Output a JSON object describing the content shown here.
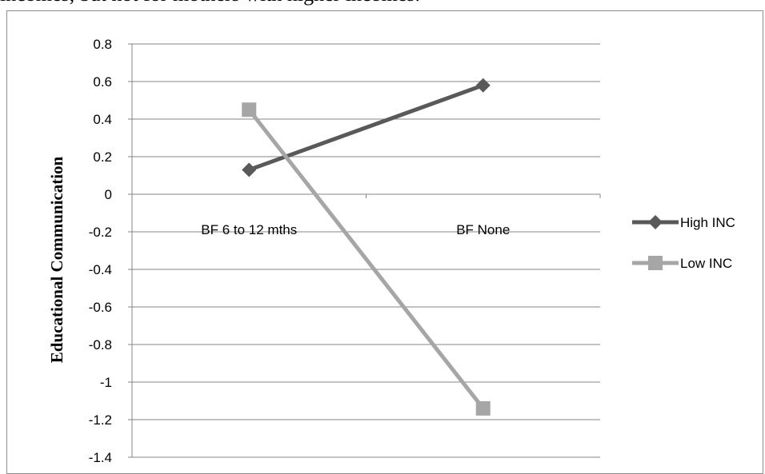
{
  "header_text": "incomes, but not for mothers with higher incomes.",
  "chart_data": {
    "type": "line",
    "categories": [
      "BF 6 to 12 mths",
      "BF None"
    ],
    "ylabel": "Educational Communication",
    "xlabel": "",
    "ylim": [
      -1.4,
      0.8
    ],
    "yticks": [
      0.8,
      0.6,
      0.4,
      0.2,
      0,
      -0.2,
      -0.4,
      -0.6,
      -0.8,
      -1,
      -1.2,
      -1.4
    ],
    "grid": true,
    "legend": "right",
    "series": [
      {
        "name": "High INC",
        "values": [
          0.13,
          0.58
        ],
        "color": "#595959",
        "marker": "diamond"
      },
      {
        "name": "Low INC",
        "values": [
          0.45,
          -1.14
        ],
        "color": "#a6a6a6",
        "marker": "square"
      }
    ]
  }
}
